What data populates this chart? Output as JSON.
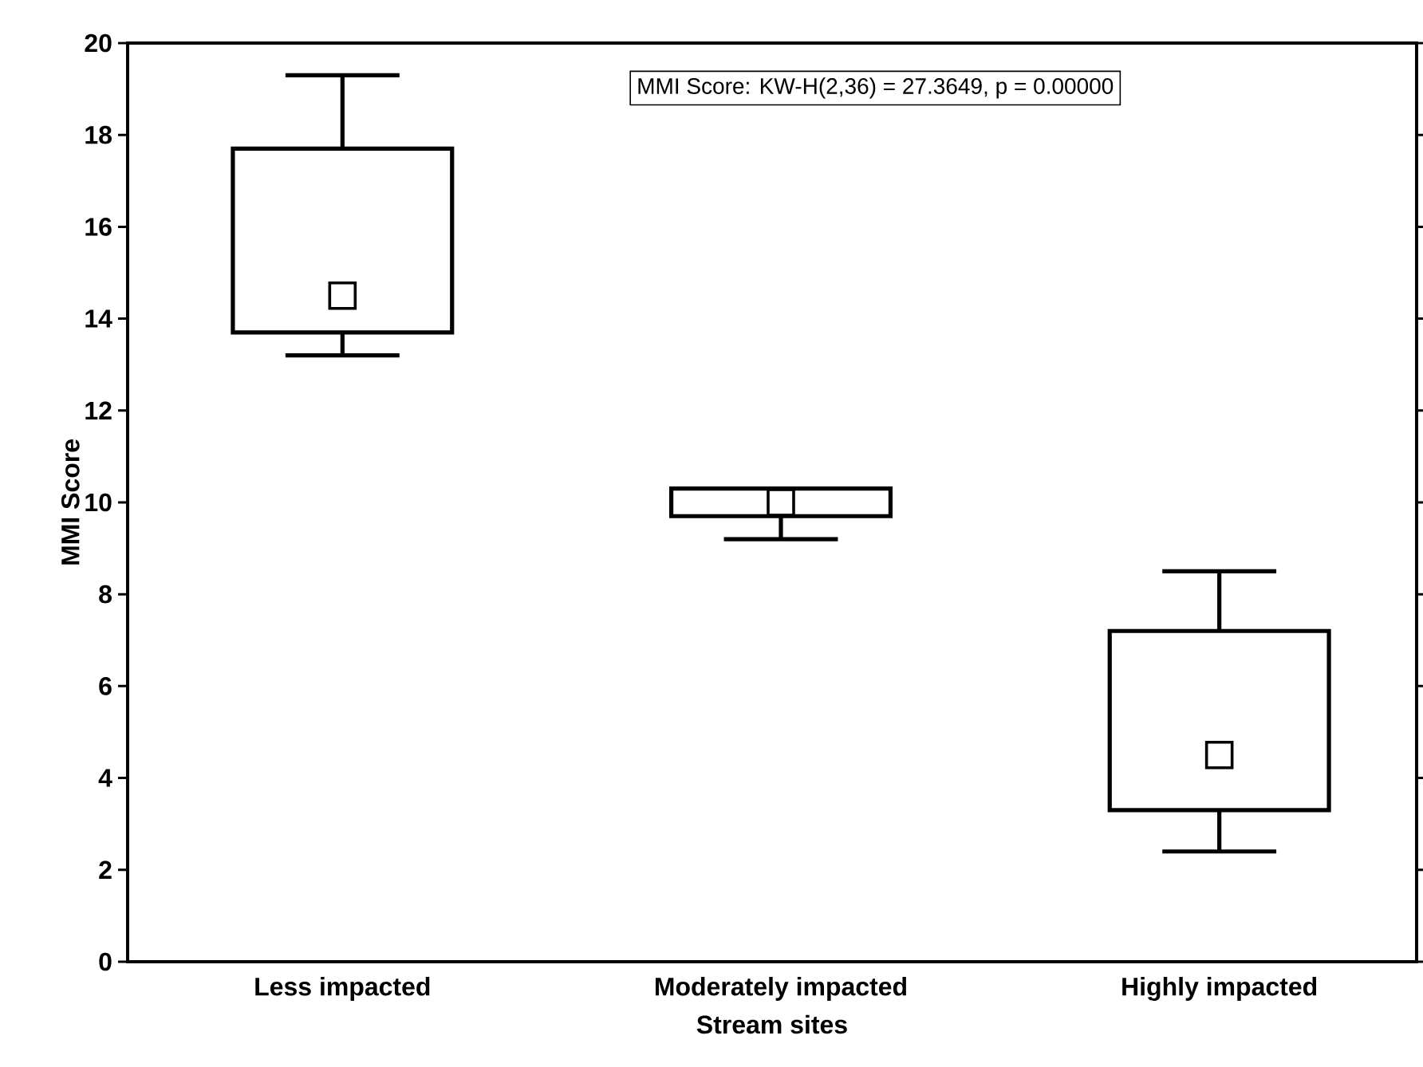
{
  "chart_data": {
    "type": "box",
    "xlabel": "Stream sites",
    "ylabel": "MMI Score",
    "categories": [
      "Less impacted",
      "Moderately impacted",
      "Highly impacted"
    ],
    "boxes": [
      {
        "low": 13.2,
        "q1": 13.7,
        "median": 14.5,
        "q3": 17.7,
        "high": 19.3
      },
      {
        "low": 9.2,
        "q1": 9.7,
        "median": 10.0,
        "q3": 10.3,
        "high": 10.3
      },
      {
        "low": 2.4,
        "q1": 3.3,
        "median": 4.5,
        "q3": 7.2,
        "high": 8.5
      }
    ],
    "marker": "square",
    "ylim": [
      0,
      20
    ],
    "yticks": [
      0,
      2,
      4,
      6,
      8,
      10,
      12,
      14,
      16,
      18,
      20
    ],
    "annotations": [
      "MMI Score:  KW-H(2,36) = 27.3649, p = 0.00000"
    ]
  }
}
